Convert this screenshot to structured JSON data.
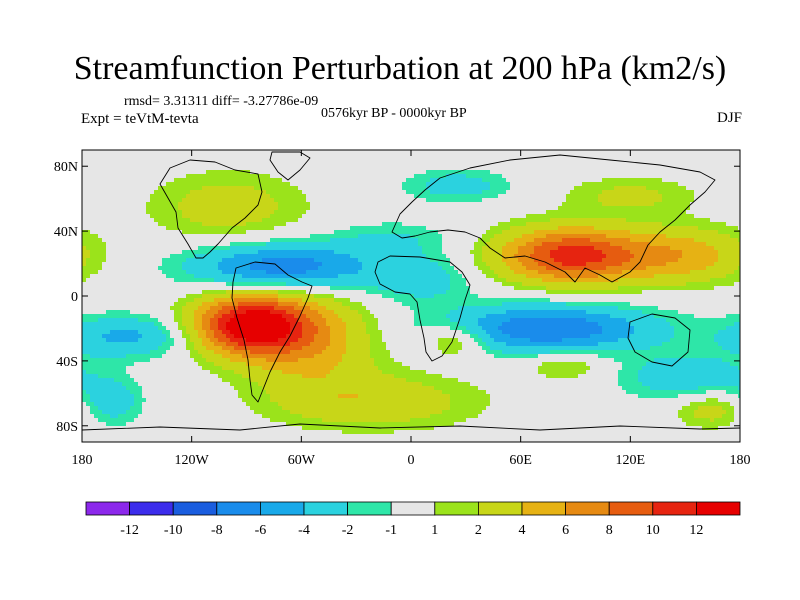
{
  "chart_data": {
    "type": "heatmap",
    "title": "Streamfunction Perturbation at 200 hPa (km2/s)",
    "stats": "rmsd= 3.31311  diff= -3.27786e-09",
    "experiment": "Expt = teVtM-tevta",
    "period": "0576kyr BP - 0000kyr BP",
    "season": "DJF",
    "x_ticks": [
      "180",
      "120W",
      "60W",
      "0",
      "60E",
      "120E",
      "180"
    ],
    "x_tick_values": [
      -180,
      -120,
      -60,
      0,
      60,
      120,
      180
    ],
    "y_ticks": [
      "80N",
      "40N",
      "0",
      "40S",
      "80S"
    ],
    "y_tick_values": [
      80,
      40,
      0,
      -40,
      -80
    ],
    "xlim": [
      -180,
      180
    ],
    "ylim": [
      -90,
      90
    ],
    "colorbar": {
      "labels": [
        "-12",
        "-10",
        "-8",
        "-6",
        "-4",
        "-2",
        "-1",
        "1",
        "2",
        "4",
        "6",
        "8",
        "10",
        "12"
      ],
      "colors": [
        "#8c28eb",
        "#3c2ceb",
        "#1a5ddf",
        "#1a8ceb",
        "#19a9e9",
        "#2bd2df",
        "#2ee6a8",
        "#e6e6e6",
        "#9be31b",
        "#c8d618",
        "#e6b214",
        "#e68a12",
        "#e65c10",
        "#e62410",
        "#e60000"
      ]
    },
    "anomalies": [
      {
        "lon": -88,
        "lat": -18,
        "amp": 13.5,
        "sx": 22,
        "sy": 13
      },
      {
        "lon": -55,
        "lat": -28,
        "amp": 5,
        "sx": 25,
        "sy": 20
      },
      {
        "lon": -70,
        "lat": 18,
        "amp": -7.5,
        "sx": 35,
        "sy": 10
      },
      {
        "lon": -155,
        "lat": -25,
        "amp": -4.5,
        "sx": 25,
        "sy": 9
      },
      {
        "lon": -165,
        "lat": -65,
        "amp": -3.5,
        "sx": 12,
        "sy": 10
      },
      {
        "lon": 88,
        "lat": 25,
        "amp": 11,
        "sx": 28,
        "sy": 12
      },
      {
        "lon": 150,
        "lat": 25,
        "amp": 5,
        "sx": 25,
        "sy": 12
      },
      {
        "lon": 75,
        "lat": -20,
        "amp": -8,
        "sx": 40,
        "sy": 10
      },
      {
        "lon": 150,
        "lat": -50,
        "amp": -3.5,
        "sx": 25,
        "sy": 10
      },
      {
        "lon": 5,
        "lat": 10,
        "amp": -3,
        "sx": 20,
        "sy": 10
      },
      {
        "lon": 25,
        "lat": -27,
        "amp": 4,
        "sx": 12,
        "sy": 7
      },
      {
        "lon": -20,
        "lat": -65,
        "amp": 3.5,
        "sx": 40,
        "sy": 12
      },
      {
        "lon": 85,
        "lat": -43,
        "amp": 2.5,
        "sx": 15,
        "sy": 6
      },
      {
        "lon": -100,
        "lat": 55,
        "amp": 3,
        "sx": 30,
        "sy": 15
      },
      {
        "lon": 120,
        "lat": 62,
        "amp": 2.5,
        "sx": 25,
        "sy": 8
      },
      {
        "lon": 25,
        "lat": 68,
        "amp": -3,
        "sx": 20,
        "sy": 7
      },
      {
        "lon": -10,
        "lat": 35,
        "amp": -2,
        "sx": 25,
        "sy": 8
      },
      {
        "lon": 165,
        "lat": -70,
        "amp": 3,
        "sx": 15,
        "sy": 8
      }
    ]
  }
}
